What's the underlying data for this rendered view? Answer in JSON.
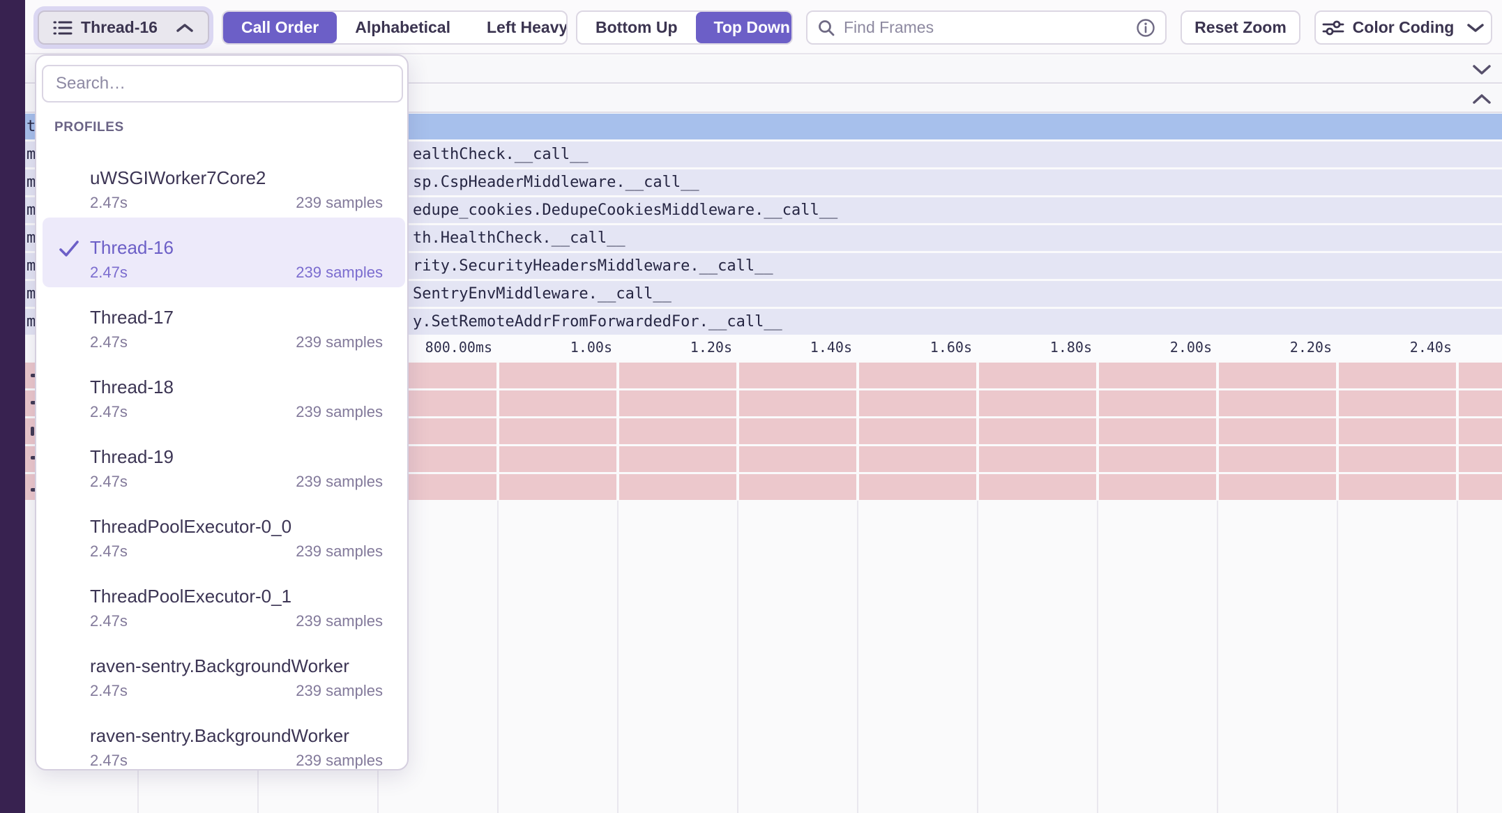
{
  "toolbar": {
    "thread_button": {
      "label": "Thread-16"
    },
    "sort_segments": {
      "options": [
        "Call Order",
        "Alphabetical",
        "Left Heavy"
      ],
      "selected": "Call Order"
    },
    "direction_segments": {
      "options": [
        "Bottom Up",
        "Top Down"
      ],
      "selected": "Top Down"
    },
    "find_frames": {
      "placeholder": "Find Frames"
    },
    "reset_zoom_label": "Reset Zoom",
    "color_coding_label": "Color Coding"
  },
  "profiles_dropdown": {
    "search_placeholder": "Search…",
    "section_label": "PROFILES",
    "items": [
      {
        "name": "uWSGIWorker7Core2",
        "duration": "2.47s",
        "samples": "239 samples",
        "selected": false
      },
      {
        "name": "Thread-16",
        "duration": "2.47s",
        "samples": "239 samples",
        "selected": true
      },
      {
        "name": "Thread-17",
        "duration": "2.47s",
        "samples": "239 samples",
        "selected": false
      },
      {
        "name": "Thread-18",
        "duration": "2.47s",
        "samples": "239 samples",
        "selected": false
      },
      {
        "name": "Thread-19",
        "duration": "2.47s",
        "samples": "239 samples",
        "selected": false
      },
      {
        "name": "ThreadPoolExecutor-0_0",
        "duration": "2.47s",
        "samples": "239 samples",
        "selected": false
      },
      {
        "name": "ThreadPoolExecutor-0_1",
        "duration": "2.47s",
        "samples": "239 samples",
        "selected": false
      },
      {
        "name": "raven-sentry.BackgroundWorker",
        "duration": "2.47s",
        "samples": "239 samples",
        "selected": false
      },
      {
        "name": "raven-sentry.BackgroundWorker",
        "duration": "2.47s",
        "samples": "239 samples",
        "selected": false
      }
    ]
  },
  "flamegraph": {
    "root_row_fragment": "t",
    "rows": [
      {
        "left_fragment": "m",
        "text": "ealthCheck.__call__"
      },
      {
        "left_fragment": "m",
        "text": "sp.CspHeaderMiddleware.__call__"
      },
      {
        "left_fragment": "m",
        "text": "edupe_cookies.DedupeCookiesMiddleware.__call__"
      },
      {
        "left_fragment": "m",
        "text": "th.HealthCheck.__call__"
      },
      {
        "left_fragment": "m",
        "text": "rity.SecurityHeadersMiddleware.__call__"
      },
      {
        "left_fragment": "m",
        "text": "SentryEnvMiddleware.__call__"
      },
      {
        "left_fragment": "m",
        "text": "y.SetRemoteAddrFromForwardedFor.__call__"
      }
    ],
    "axis_ticks": [
      "800.00ms",
      "1.00s",
      "1.20s",
      "1.40s",
      "1.60s",
      "1.80s",
      "2.00s",
      "2.20s",
      "2.40s"
    ],
    "pink_row_count": 5
  },
  "colors": {
    "accent_purple": "#6c5fc7",
    "selected_frame_blue": "#a7c0ec",
    "frame_lavender": "#e4e5f4",
    "frame_pink": "#ecc8cc",
    "sidebar_strip": "#382250"
  }
}
